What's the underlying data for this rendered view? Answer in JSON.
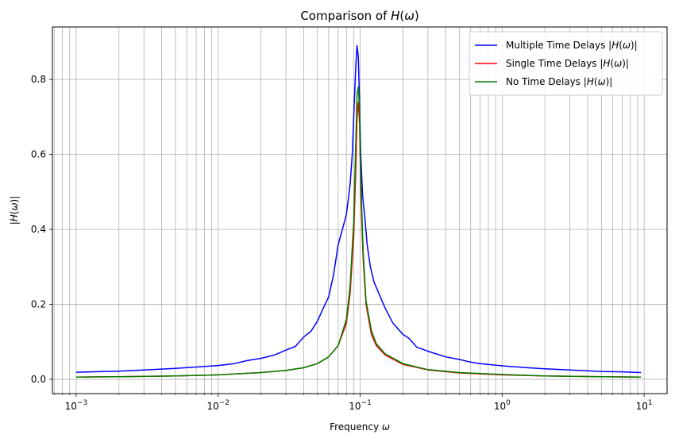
{
  "chart_data": {
    "type": "line",
    "title": "Comparison of H(ω)",
    "xlabel": "Frequency ω",
    "ylabel": "|H(ω)|",
    "x_scale": "log",
    "xlim": [
      0.00068,
      14.5
    ],
    "ylim": [
      -0.038,
      0.94
    ],
    "grid": true,
    "grid_minor_x": true,
    "legend_position": "top-right",
    "x_ticks": [
      {
        "value": 0.001,
        "base": "10",
        "exp": "−3"
      },
      {
        "value": 0.01,
        "base": "10",
        "exp": "−2"
      },
      {
        "value": 0.1,
        "base": "10",
        "exp": "−1"
      },
      {
        "value": 1,
        "base": "10",
        "exp": "0"
      },
      {
        "value": 10,
        "base": "10",
        "exp": "1"
      }
    ],
    "y_ticks": [
      {
        "value": 0.0,
        "label": "0.0"
      },
      {
        "value": 0.2,
        "label": "0.2"
      },
      {
        "value": 0.4,
        "label": "0.4"
      },
      {
        "value": 0.6,
        "label": "0.6"
      },
      {
        "value": 0.8,
        "label": "0.8"
      }
    ],
    "series": [
      {
        "name": "Multiple Time Delays |H(ω)|",
        "color": "#0000ff",
        "x": [
          0.001,
          0.002,
          0.003,
          0.005,
          0.007,
          0.01,
          0.013,
          0.016,
          0.02,
          0.025,
          0.03,
          0.035,
          0.04,
          0.045,
          0.05,
          0.055,
          0.06,
          0.065,
          0.07,
          0.075,
          0.08,
          0.085,
          0.088,
          0.091,
          0.093,
          0.095,
          0.097,
          0.099,
          0.101,
          0.104,
          0.108,
          0.112,
          0.118,
          0.125,
          0.135,
          0.15,
          0.17,
          0.2,
          0.22,
          0.25,
          0.3,
          0.4,
          0.5,
          0.6,
          0.7,
          1,
          1.5,
          2,
          3,
          5,
          7,
          9.5
        ],
        "y": [
          0.019,
          0.022,
          0.025,
          0.029,
          0.033,
          0.037,
          0.042,
          0.05,
          0.056,
          0.065,
          0.078,
          0.088,
          0.113,
          0.128,
          0.155,
          0.19,
          0.22,
          0.28,
          0.36,
          0.4,
          0.44,
          0.52,
          0.6,
          0.74,
          0.83,
          0.89,
          0.86,
          0.74,
          0.6,
          0.49,
          0.43,
          0.36,
          0.3,
          0.26,
          0.23,
          0.19,
          0.15,
          0.12,
          0.11,
          0.086,
          0.075,
          0.06,
          0.053,
          0.046,
          0.042,
          0.036,
          0.031,
          0.028,
          0.025,
          0.021,
          0.02,
          0.018
        ]
      },
      {
        "name": "Single Time Delays |H(ω)|",
        "color": "#ff0000",
        "x": [
          0.001,
          0.002,
          0.005,
          0.01,
          0.02,
          0.03,
          0.04,
          0.05,
          0.06,
          0.07,
          0.08,
          0.085,
          0.09,
          0.093,
          0.095,
          0.097,
          0.099,
          0.101,
          0.105,
          0.11,
          0.12,
          0.13,
          0.15,
          0.2,
          0.3,
          0.5,
          1,
          2,
          5,
          9.5
        ],
        "y": [
          0.006,
          0.007,
          0.009,
          0.012,
          0.018,
          0.024,
          0.031,
          0.042,
          0.06,
          0.09,
          0.15,
          0.23,
          0.38,
          0.55,
          0.7,
          0.74,
          0.68,
          0.5,
          0.32,
          0.2,
          0.12,
          0.09,
          0.065,
          0.04,
          0.025,
          0.017,
          0.012,
          0.009,
          0.007,
          0.006
        ]
      },
      {
        "name": "No Time Delays |H(ω)|",
        "color": "#008000",
        "x": [
          0.001,
          0.002,
          0.005,
          0.01,
          0.02,
          0.03,
          0.04,
          0.05,
          0.06,
          0.07,
          0.08,
          0.085,
          0.09,
          0.093,
          0.095,
          0.097,
          0.099,
          0.101,
          0.105,
          0.11,
          0.12,
          0.13,
          0.15,
          0.2,
          0.3,
          0.5,
          1,
          2,
          5,
          9.5
        ],
        "y": [
          0.006,
          0.007,
          0.009,
          0.012,
          0.018,
          0.024,
          0.031,
          0.042,
          0.06,
          0.09,
          0.16,
          0.25,
          0.42,
          0.62,
          0.76,
          0.78,
          0.72,
          0.54,
          0.34,
          0.21,
          0.13,
          0.095,
          0.068,
          0.042,
          0.026,
          0.018,
          0.013,
          0.009,
          0.007,
          0.006
        ]
      }
    ]
  }
}
